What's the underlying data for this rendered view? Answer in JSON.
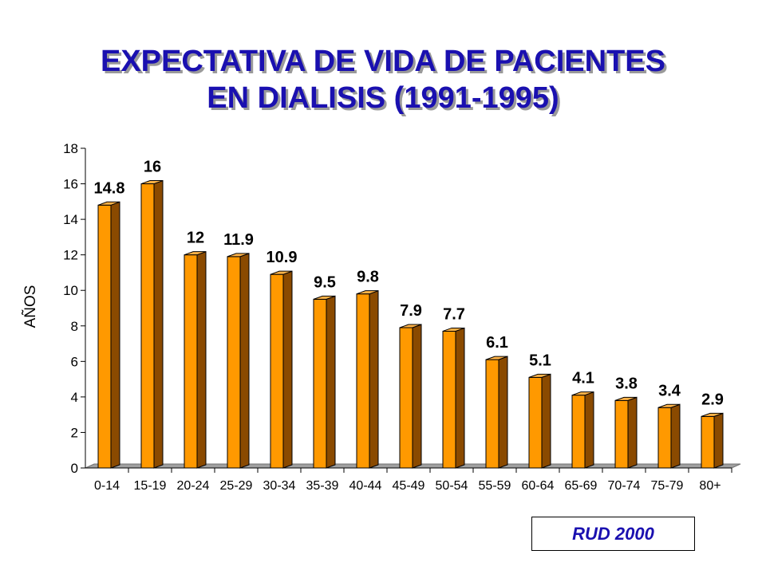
{
  "title_lines": [
    "EXPECTATIVA DE VIDA DE PACIENTES",
    "EN DIALISIS (1991-1995)"
  ],
  "source_label": "RUD 2000",
  "colors": {
    "title": "#1a10b0",
    "bar_front": "#ff9900",
    "bar_side": "#8a4a00",
    "bar_top": "#ffb347",
    "floor": "#a0a0a0"
  },
  "chart_data": {
    "type": "bar",
    "title": "EXPECTATIVA DE VIDA DE PACIENTES EN DIALISIS (1991-1995)",
    "xlabel": "",
    "ylabel": "AÑOS",
    "ylim": [
      0,
      18
    ],
    "yticks": [
      0,
      2,
      4,
      6,
      8,
      10,
      12,
      14,
      16,
      18
    ],
    "grid": false,
    "categories": [
      "0-14",
      "15-19",
      "20-24",
      "25-29",
      "30-34",
      "35-39",
      "40-44",
      "45-49",
      "50-54",
      "55-59",
      "60-64",
      "65-69",
      "70-74",
      "75-79",
      "80+"
    ],
    "values": [
      14.8,
      16,
      12,
      11.9,
      10.9,
      9.5,
      9.8,
      7.9,
      7.7,
      6.1,
      5.1,
      4.1,
      3.8,
      3.4,
      2.9
    ],
    "data_labels": [
      "14.8",
      "16",
      "12",
      "11.9",
      "10.9",
      "9.5",
      "9.8",
      "7.9",
      "7.7",
      "6.1",
      "5.1",
      "4.1",
      "3.8",
      "3.4",
      "2.9"
    ]
  }
}
